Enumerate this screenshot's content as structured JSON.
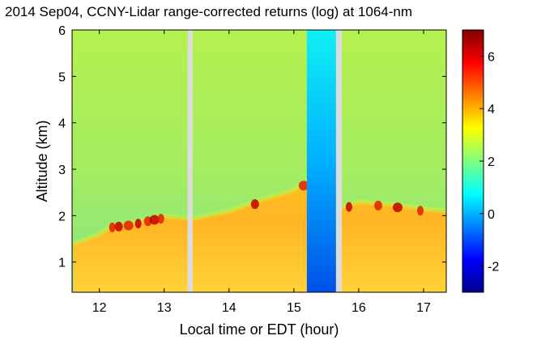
{
  "chart_data": {
    "type": "heatmap",
    "title": "2014 Sep04, CCNY-Lidar range-corrected returns (log) at 1064-nm",
    "xlabel": "Local time or EDT (hour)",
    "ylabel": "Altitude (km)",
    "xlim": [
      11.58,
      17.35
    ],
    "ylim": [
      0.35,
      6.0
    ],
    "x_ticks": [
      12,
      13,
      14,
      15,
      16,
      17
    ],
    "y_ticks": [
      1,
      2,
      3,
      4,
      5,
      6
    ],
    "colorbar": {
      "range": [
        -3.0,
        7.0
      ],
      "ticks": [
        -2,
        0,
        2,
        4,
        6
      ],
      "colormap": "jet"
    },
    "no_data_gaps": [
      {
        "start": 13.36,
        "end": 13.44
      },
      {
        "start": 15.65,
        "end": 15.74
      }
    ],
    "regions": {
      "free_troposphere_value": 2.0,
      "boundary_layer_value": 3.6,
      "boundary_layer_top_km": [
        {
          "x": 11.6,
          "y": 1.4
        },
        {
          "x": 12.0,
          "y": 1.6
        },
        {
          "x": 12.2,
          "y": 1.8
        },
        {
          "x": 12.5,
          "y": 1.85
        },
        {
          "x": 12.8,
          "y": 1.95
        },
        {
          "x": 13.0,
          "y": 2.0
        },
        {
          "x": 13.3,
          "y": 1.95
        },
        {
          "x": 13.5,
          "y": 1.95
        },
        {
          "x": 14.0,
          "y": 2.1
        },
        {
          "x": 14.5,
          "y": 2.35
        },
        {
          "x": 15.0,
          "y": 2.55
        },
        {
          "x": 15.2,
          "y": 2.75
        },
        {
          "x": 15.75,
          "y": 2.2
        },
        {
          "x": 16.0,
          "y": 2.3
        },
        {
          "x": 16.5,
          "y": 2.25
        },
        {
          "x": 17.0,
          "y": 2.15
        },
        {
          "x": 17.35,
          "y": 2.1
        }
      ],
      "low_signal_block": {
        "x_start": 15.2,
        "x_end": 15.65,
        "value": -1.8
      }
    }
  }
}
